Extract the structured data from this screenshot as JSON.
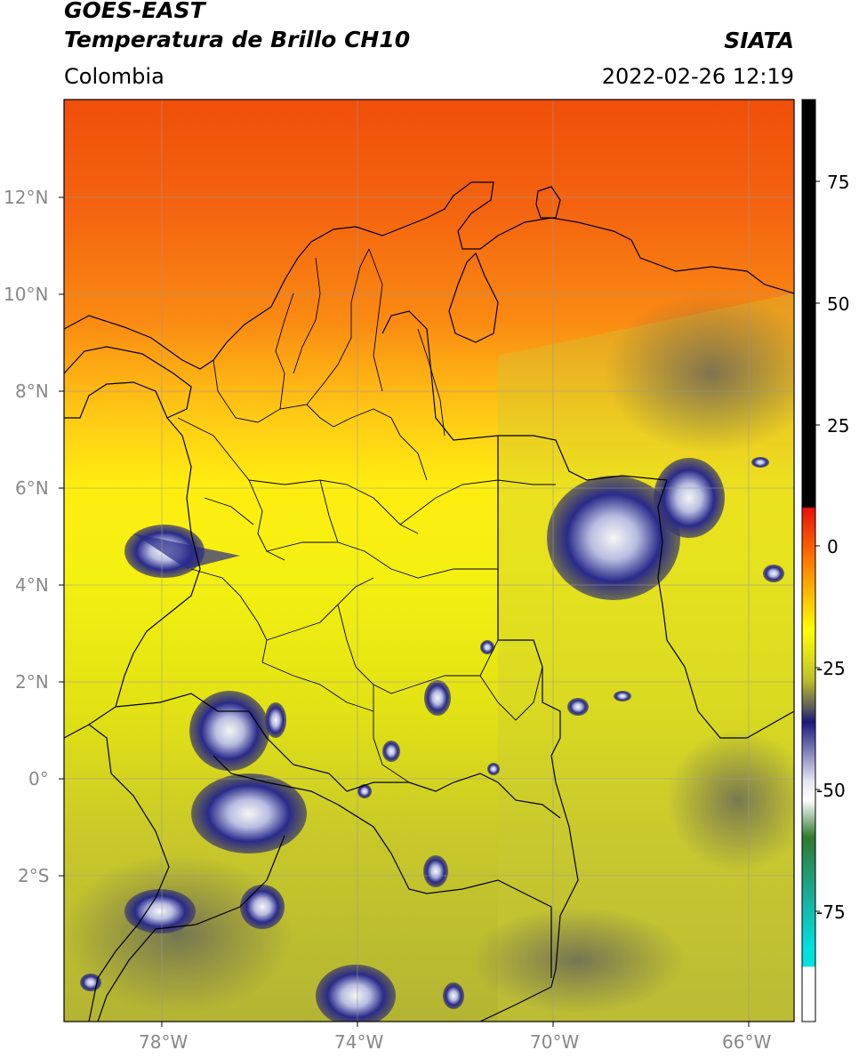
{
  "header": {
    "line1": "GOES-EAST",
    "line2": "Temperatura de Brillo CH10",
    "region": "Colombia",
    "brand": "SIATA",
    "timestamp": "2022-02-26 12:19"
  },
  "map": {
    "lon_range": [
      -80,
      -65
    ],
    "lat_range": [
      -5,
      14
    ],
    "lat_ticks": [
      {
        "label": "12°N",
        "lat": 12
      },
      {
        "label": "10°N",
        "lat": 10
      },
      {
        "label": "8°N",
        "lat": 8
      },
      {
        "label": "6°N",
        "lat": 6
      },
      {
        "label": "4°N",
        "lat": 4
      },
      {
        "label": "2°N",
        "lat": 2
      },
      {
        "label": "0°",
        "lat": 0
      },
      {
        "label": "2°S",
        "lat": -2
      }
    ],
    "lon_ticks": [
      {
        "label": "78°W",
        "lon": -78
      },
      {
        "label": "74°W",
        "lon": -74
      },
      {
        "label": "70°W",
        "lon": -70
      },
      {
        "label": "66°W",
        "lon": -66
      }
    ]
  },
  "colorbar": {
    "ticks": [
      "75",
      "50",
      "25",
      "0",
      "-25",
      "-50",
      "-75"
    ],
    "tick_values": [
      75,
      50,
      25,
      0,
      -25,
      -50,
      -75
    ],
    "range": [
      -95,
      90
    ],
    "colors": {
      "black": "#000000",
      "red": "#e8120b",
      "orange": "#ff7a00",
      "yellow": "#ffff00",
      "olive": "#bdbd2a",
      "gray": "#5a5a5a",
      "navy": "#1a1a7a",
      "white": "#ffffff",
      "green": "#2f7a2f",
      "teal": "#17b3a1",
      "cyan": "#00e0e0"
    }
  }
}
